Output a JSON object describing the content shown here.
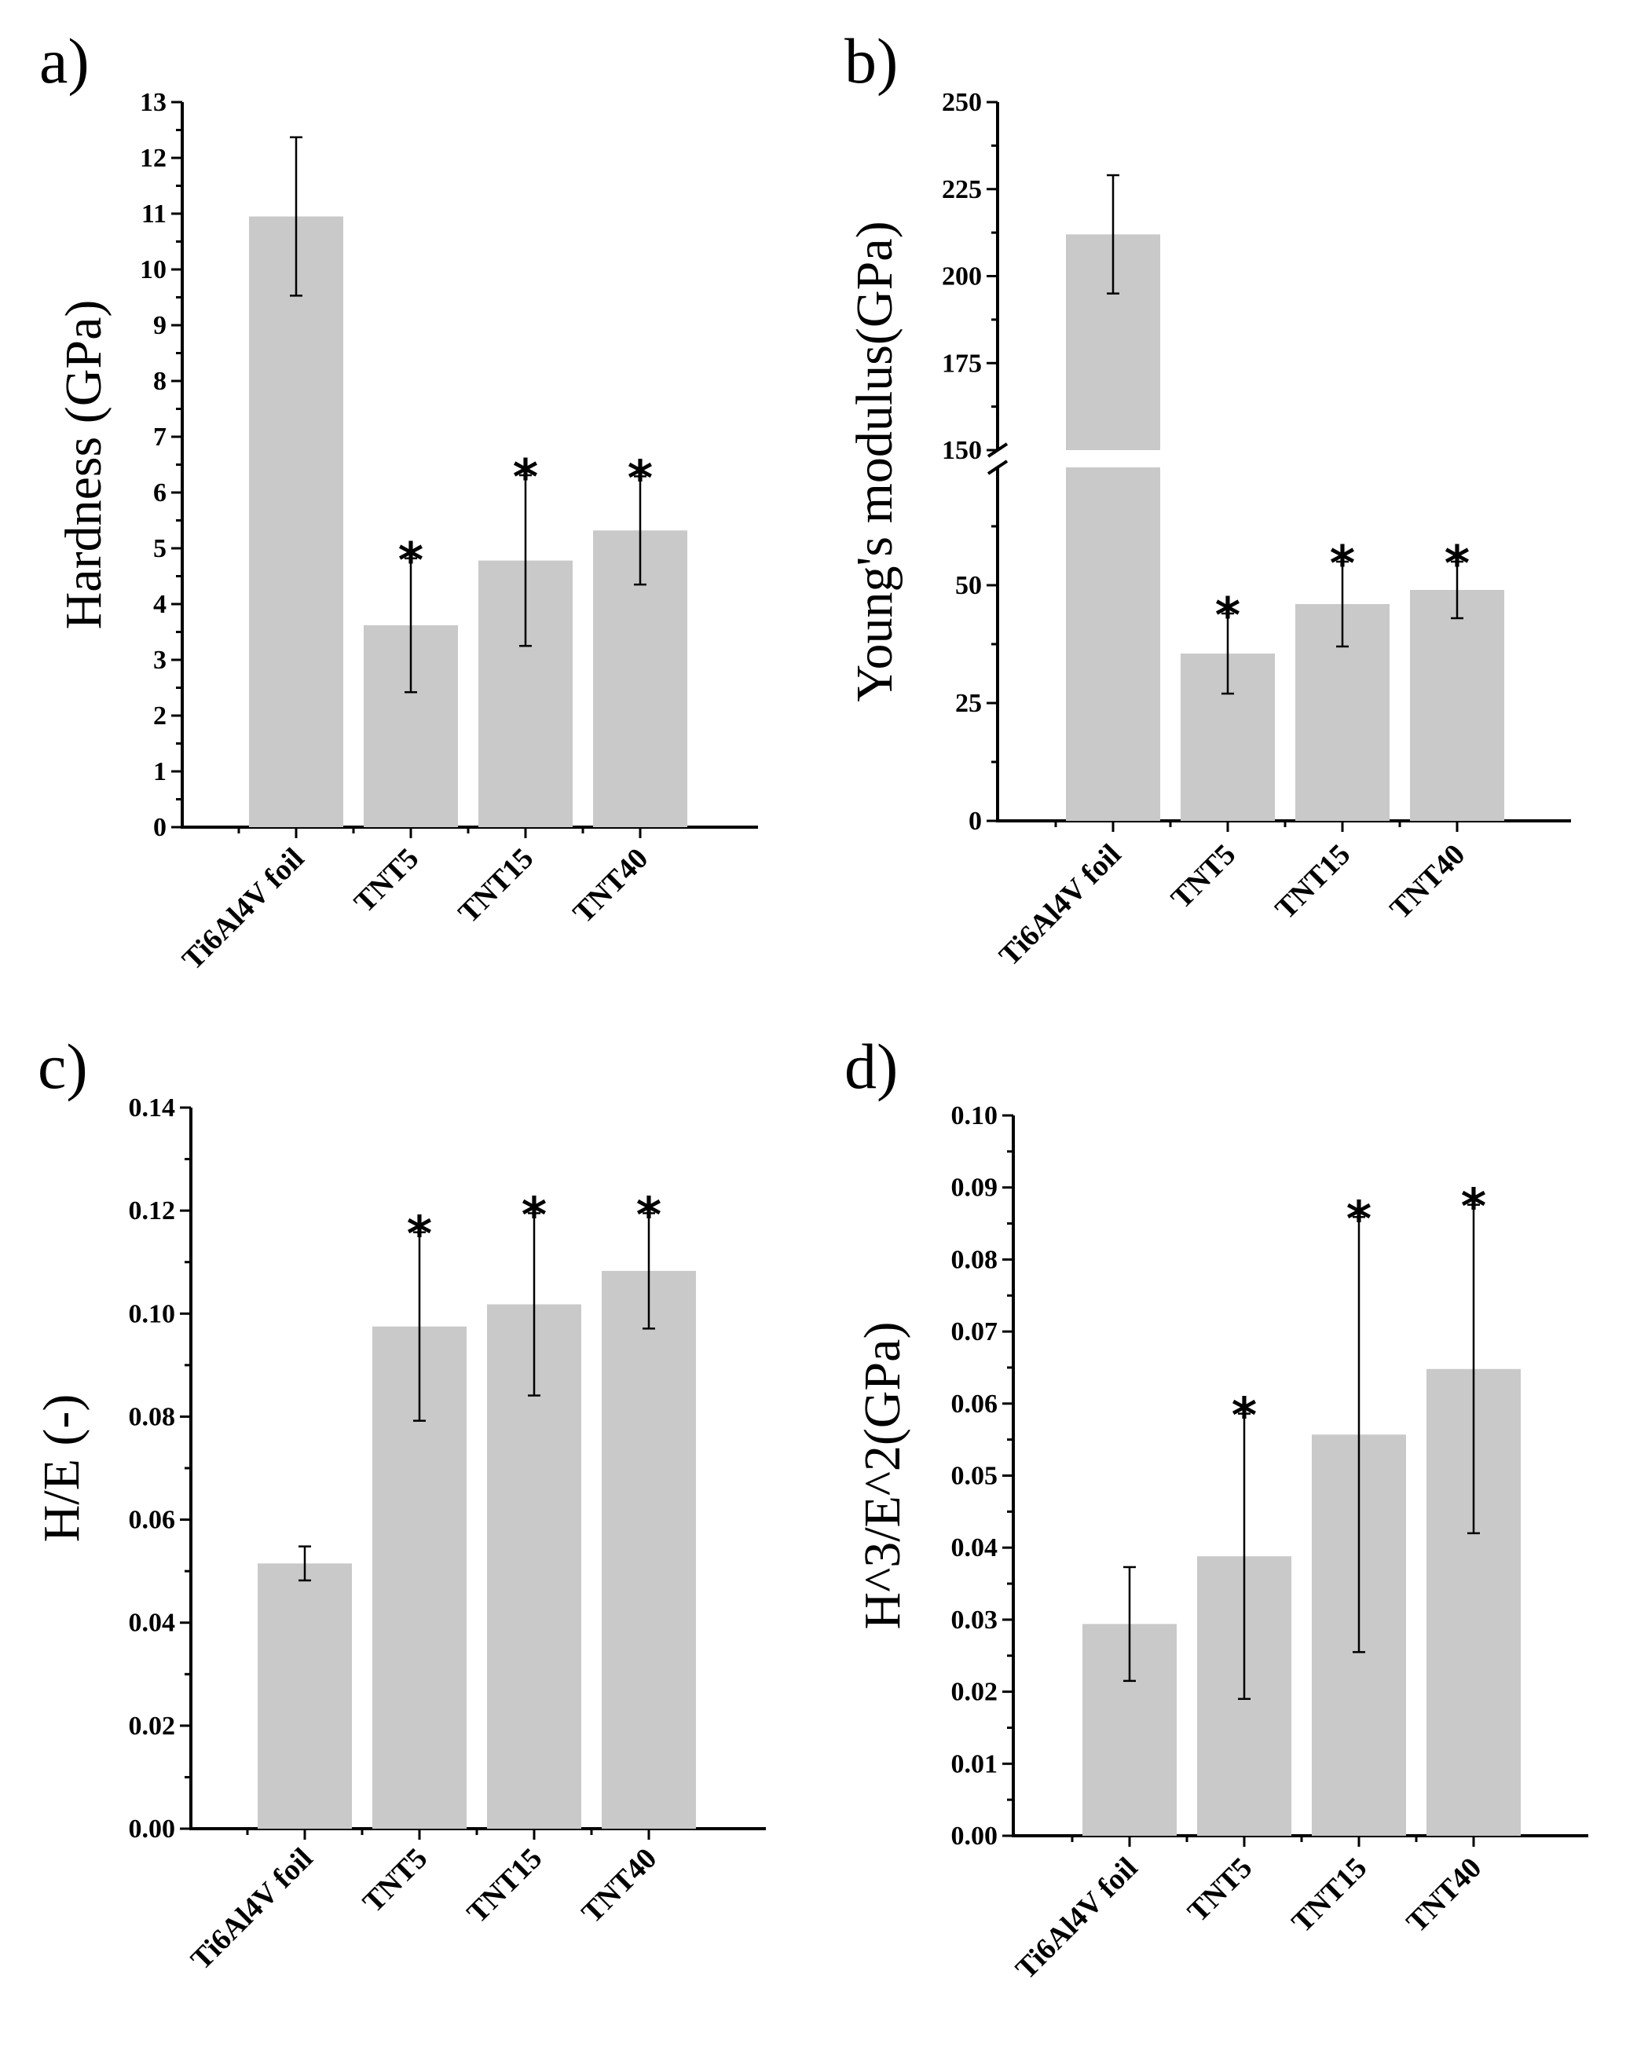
{
  "chart_data": [
    {
      "id": "a",
      "type": "bar",
      "panel_label": "a)",
      "ylabel": "Hardness (GPa)",
      "categories": [
        "Ti6Al4V foil",
        "TNT5",
        "TNT15",
        "TNT40"
      ],
      "values": [
        10.95,
        3.62,
        4.78,
        5.32
      ],
      "errors": [
        1.42,
        1.2,
        1.53,
        0.97
      ],
      "significant": [
        false,
        true,
        true,
        true
      ],
      "star_text": "*",
      "ylim": [
        0,
        13
      ],
      "yticks": [
        "0",
        "1",
        "2",
        "3",
        "4",
        "5",
        "6",
        "7",
        "8",
        "9",
        "10",
        "11",
        "12",
        "13"
      ]
    },
    {
      "id": "b",
      "type": "bar",
      "panel_label": "b)",
      "ylabel": "Young's modulus(GPa)",
      "categories": [
        "Ti6Al4V foil",
        "TNT5",
        "TNT15",
        "TNT40"
      ],
      "values": [
        212,
        35.5,
        46,
        49
      ],
      "errors": [
        17,
        8.5,
        9,
        6
      ],
      "significant": [
        false,
        true,
        true,
        true
      ],
      "star_text": "*",
      "broken_axis": {
        "lower": [
          0,
          75
        ],
        "upper": [
          150,
          250
        ]
      },
      "yticks": [
        "0",
        "25",
        "50",
        "150",
        "175",
        "200",
        "225",
        "250"
      ]
    },
    {
      "id": "c",
      "type": "bar",
      "panel_label": "c)",
      "ylabel": "H/E (-)",
      "categories": [
        "Ti6Al4V foil",
        "TNT5",
        "TNT15",
        "TNT40"
      ],
      "values": [
        0.0515,
        0.0975,
        0.1018,
        0.1083
      ],
      "errors": [
        0.0033,
        0.0183,
        0.0177,
        0.0112
      ],
      "significant": [
        false,
        true,
        true,
        true
      ],
      "star_text": "*",
      "ylim": [
        0,
        0.14
      ],
      "yticks": [
        "0.00",
        "0.02",
        "0.04",
        "0.06",
        "0.08",
        "0.10",
        "0.12",
        "0.14"
      ]
    },
    {
      "id": "d",
      "type": "bar",
      "panel_label": "d)",
      "ylabel": "H^3/E^2(GPa)",
      "categories": [
        "Ti6Al4V foil",
        "TNT5",
        "TNT15",
        "TNT40"
      ],
      "values": [
        0.0294,
        0.0388,
        0.0557,
        0.0648
      ],
      "errors": [
        0.0079,
        0.0198,
        0.0302,
        0.0228
      ],
      "significant": [
        false,
        true,
        true,
        true
      ],
      "star_text": "*",
      "ylim": [
        0,
        0.1
      ],
      "yticks": [
        "0.00",
        "0.01",
        "0.02",
        "0.03",
        "0.04",
        "0.05",
        "0.06",
        "0.07",
        "0.08",
        "0.09",
        "0.10"
      ]
    }
  ]
}
